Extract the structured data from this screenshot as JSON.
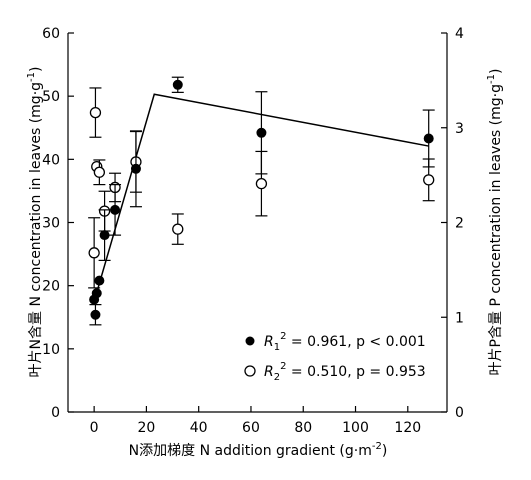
{
  "chart_data": {
    "type": "scatter",
    "xlabel": "N添加梯度  N addition gradient (g·m",
    "xlabel_sup": "-2",
    "xlabel_end": ")",
    "ylabel_left": "叶片N含量  N concentration in leaves (mg·g",
    "ylabel_left_sup": "-1",
    "ylabel_left_end": ")",
    "ylabel_right": "叶片P含量  P concentration in leaves (mg·g",
    "ylabel_right_sup": "-1",
    "ylabel_right_end": ")",
    "xlim": [
      -10,
      135
    ],
    "ylim_left": [
      0,
      60
    ],
    "ylim_right": [
      0,
      4
    ],
    "x_ticks": [
      0,
      20,
      40,
      60,
      80,
      100,
      120
    ],
    "y_left_ticks": [
      0,
      10,
      20,
      30,
      40,
      50,
      60
    ],
    "y_right_ticks": [
      0,
      1,
      2,
      3,
      4
    ],
    "series": [
      {
        "name_base": "R",
        "name_sub": "1",
        "name_sup": "2",
        "name_rest": " = 0.961,  p < 0.001",
        "marker": "filled",
        "axis": "left",
        "points": [
          {
            "x": 0,
            "y": 17.8,
            "err": 0
          },
          {
            "x": 0.5,
            "y": 15.4,
            "err": 1.6
          },
          {
            "x": 1,
            "y": 18.8,
            "err": 0
          },
          {
            "x": 2,
            "y": 20.8,
            "err": 0
          },
          {
            "x": 4,
            "y": 28.0,
            "err": 4.0
          },
          {
            "x": 8,
            "y": 32.0,
            "err": 4.0
          },
          {
            "x": 16,
            "y": 38.5,
            "err": 6.0
          },
          {
            "x": 32,
            "y": 51.8,
            "err": 1.2
          },
          {
            "x": 64,
            "y": 44.2,
            "err": 6.5
          },
          {
            "x": 128,
            "y": 43.3,
            "err": 4.5
          }
        ]
      },
      {
        "name_base": "R",
        "name_sub": "2",
        "name_sup": "2",
        "name_rest": " = 0.510,  p = 0.953",
        "marker": "open",
        "axis": "right",
        "points": [
          {
            "x": 0,
            "y": 1.68,
            "err": 0.37
          },
          {
            "x": 0.5,
            "y": 3.16,
            "err": 0.26
          },
          {
            "x": 1,
            "y": 2.59,
            "err": 0
          },
          {
            "x": 2,
            "y": 2.53,
            "err": 0.13
          },
          {
            "x": 4,
            "y": 2.12,
            "err": 0.21
          },
          {
            "x": 8,
            "y": 2.37,
            "err": 0.15
          },
          {
            "x": 16,
            "y": 2.64,
            "err": 0.32
          },
          {
            "x": 32,
            "y": 1.93,
            "err": 0.16
          },
          {
            "x": 64,
            "y": 2.41,
            "err": 0.34
          },
          {
            "x": 128,
            "y": 2.45,
            "err": 0.22
          }
        ]
      }
    ],
    "fit_line": {
      "axis": "left",
      "points": [
        [
          0,
          17.5
        ],
        [
          23,
          50.3
        ],
        [
          128,
          42.1
        ]
      ]
    },
    "legend_position": "bottom-right"
  }
}
